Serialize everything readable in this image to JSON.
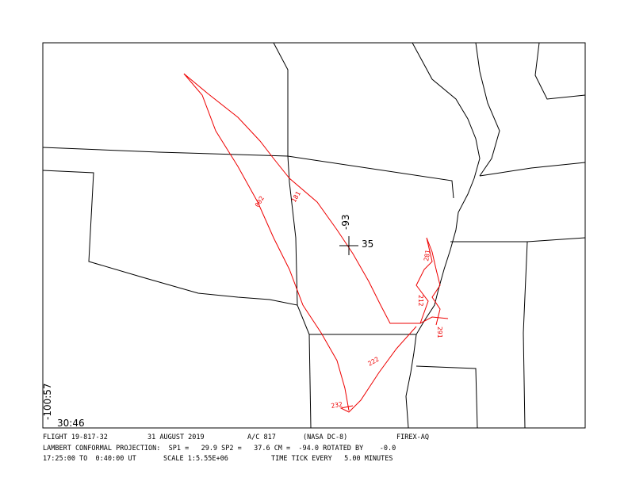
{
  "map": {
    "center_lon_label": "-93",
    "center_lat_label": "35",
    "corner_lon_label": "-100:57",
    "corner_lat_label": "30:46",
    "track_labels": [
      "002",
      "181",
      "222",
      "232",
      "212",
      "291",
      "281"
    ],
    "footer": {
      "flight": "FLIGHT 19-817-32",
      "date": "31 AUGUST 2019",
      "aircraft": "A/C 817",
      "aircraft_name": "(NASA DC-8)",
      "campaign": "FIREX-AQ",
      "projection": "LAMBERT CONFORMAL PROJECTION:  SP1 =   29.9 SP2 =   37.6 CM =  -94.0 ROTATED BY    -0.0",
      "time_range": "17:25:00 TO  0:40:00 UT",
      "scale": "SCALE 1:5.55E+06",
      "time_tick": "TIME TICK EVERY   5.00 MINUTES"
    }
  }
}
